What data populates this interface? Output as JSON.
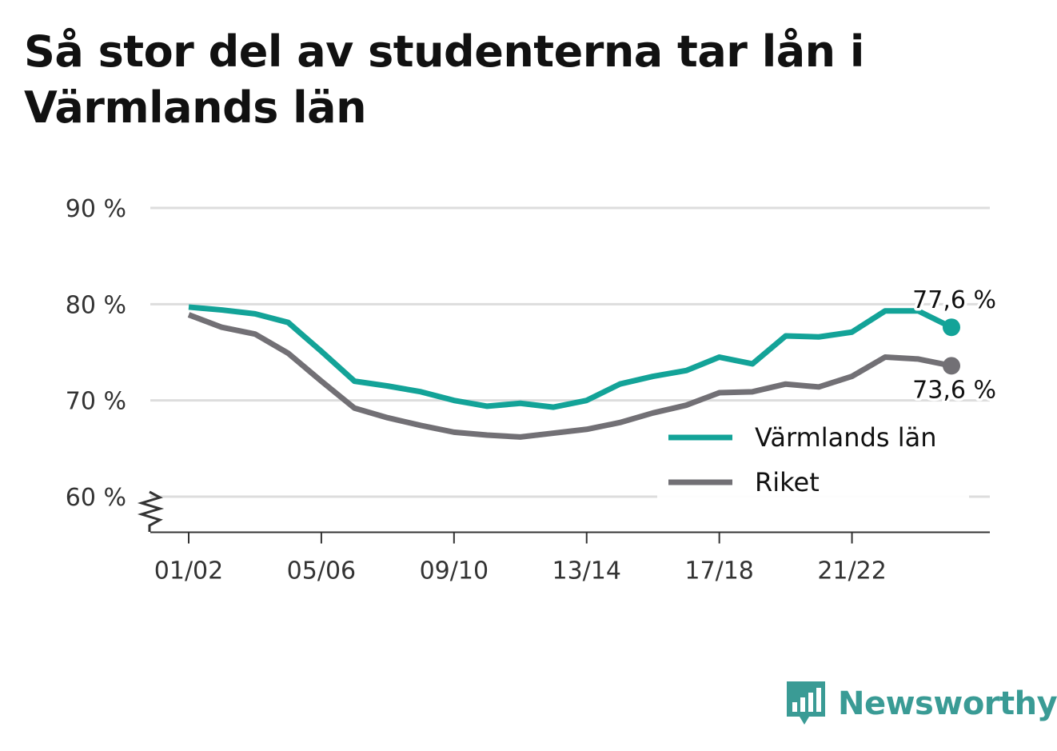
{
  "title": "Så stor del av studenterna tar lån i Värmlands län",
  "brand": {
    "name": "Newsworthy",
    "color": "#3a9b95",
    "icon": "newsworthy-logo-icon"
  },
  "chart_data": {
    "type": "line",
    "x": [
      "01/02",
      "02/03",
      "03/04",
      "04/05",
      "05/06",
      "06/07",
      "07/08",
      "08/09",
      "09/10",
      "10/11",
      "11/12",
      "12/13",
      "13/14",
      "14/15",
      "15/16",
      "16/17",
      "17/18",
      "18/19",
      "19/20",
      "20/21",
      "21/22",
      "22/23",
      "23/24",
      "24/25"
    ],
    "x_tick_labels": [
      "01/02",
      "05/06",
      "09/10",
      "13/14",
      "17/18",
      "21/22"
    ],
    "y_tick_labels": [
      "60 %",
      "70 %",
      "80 %",
      "90 %"
    ],
    "y_ticks": [
      60,
      70,
      80,
      90
    ],
    "ylim": [
      56.3,
      90
    ],
    "y_axis_broken": true,
    "grid": true,
    "legend_position": "bottom-right",
    "series": [
      {
        "name": "Värmlands län",
        "color": "#13a398",
        "values": [
          79.7,
          79.4,
          79.0,
          78.1,
          75.1,
          72.0,
          71.5,
          70.9,
          70.0,
          69.4,
          69.7,
          69.3,
          70.0,
          71.7,
          72.5,
          73.1,
          74.5,
          73.8,
          76.7,
          76.6,
          77.1,
          79.3,
          79.3,
          77.6
        ],
        "end_label": "77,6 %"
      },
      {
        "name": "Riket",
        "color": "#727075",
        "values": [
          78.9,
          77.6,
          76.9,
          74.9,
          72.0,
          69.2,
          68.2,
          67.4,
          66.7,
          66.4,
          66.2,
          66.6,
          67.0,
          67.7,
          68.7,
          69.5,
          70.8,
          70.9,
          71.7,
          71.4,
          72.5,
          74.5,
          74.3,
          73.6
        ],
        "end_label": "73,6 %"
      }
    ]
  }
}
